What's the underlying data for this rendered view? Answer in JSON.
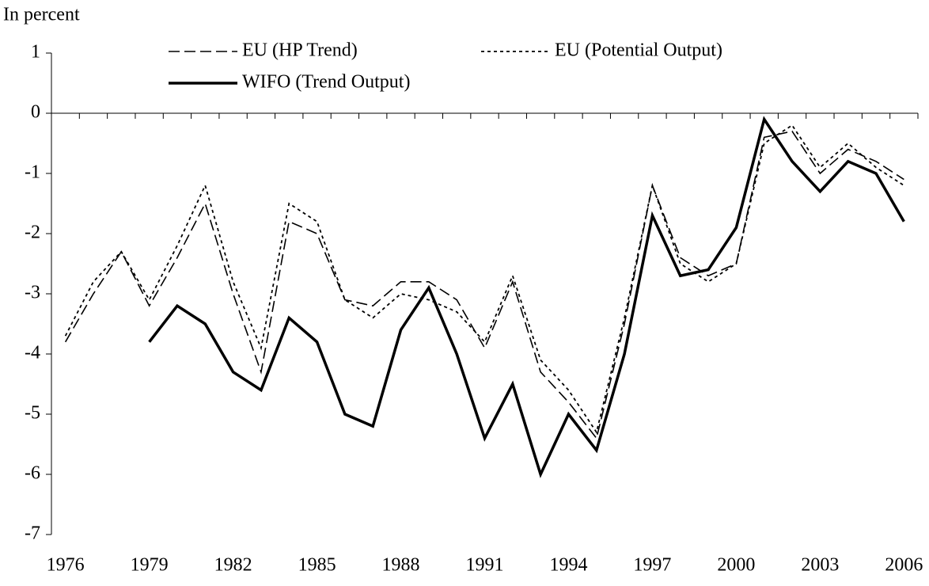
{
  "chart_data": {
    "type": "line",
    "y_label": "In percent",
    "categories": [
      "1976",
      null,
      null,
      "1979",
      null,
      null,
      "1982",
      null,
      null,
      "1985",
      null,
      null,
      "1988",
      null,
      null,
      "1991",
      null,
      null,
      "1994",
      null,
      null,
      "1997",
      null,
      null,
      "2000",
      null,
      null,
      "2003",
      null,
      null,
      "2006"
    ],
    "series": [
      {
        "name": "EU (HP Trend)",
        "color": "#000000",
        "style": "dashed",
        "values": [
          -3.8,
          -3.0,
          -2.3,
          -3.2,
          -2.4,
          -1.5,
          -3.0,
          -4.3,
          -1.8,
          -2.0,
          -3.1,
          -3.2,
          -2.8,
          -2.8,
          -3.1,
          -3.9,
          -2.8,
          -4.3,
          -4.8,
          -5.4,
          -3.5,
          -1.2,
          -2.4,
          -2.7,
          -2.5,
          -0.4,
          -0.3,
          -1.0,
          -0.6,
          -0.8,
          -1.1
        ]
      },
      {
        "name": "EU (Potential Output)",
        "color": "#000000",
        "style": "dotted",
        "values": [
          -3.7,
          -2.8,
          -2.3,
          -3.1,
          -2.2,
          -1.2,
          -2.8,
          -3.9,
          -1.5,
          -1.8,
          -3.1,
          -3.4,
          -3.0,
          -3.1,
          -3.3,
          -3.8,
          -2.7,
          -4.1,
          -4.6,
          -5.3,
          -3.4,
          -1.2,
          -2.5,
          -2.8,
          -2.5,
          -0.5,
          -0.2,
          -0.9,
          -0.5,
          -0.9,
          -1.2
        ]
      },
      {
        "name": "WIFO (Trend Output)",
        "color": "#000000",
        "style": "solid",
        "values": [
          null,
          null,
          null,
          -3.8,
          -3.2,
          -3.5,
          -4.3,
          -4.6,
          -3.4,
          -3.8,
          -5.0,
          -5.2,
          -3.6,
          -2.9,
          -4.0,
          -5.4,
          -4.5,
          -6.0,
          -5.0,
          -5.6,
          -4.0,
          -1.7,
          -2.7,
          -2.6,
          -1.9,
          -0.1,
          -0.8,
          -1.3,
          -0.8,
          -1.0,
          -1.8
        ]
      }
    ],
    "ylim": [
      -7,
      1
    ],
    "yticks": [
      -7,
      -6,
      -5,
      -4,
      -3,
      -2,
      -1,
      0,
      1
    ],
    "grid": false
  }
}
